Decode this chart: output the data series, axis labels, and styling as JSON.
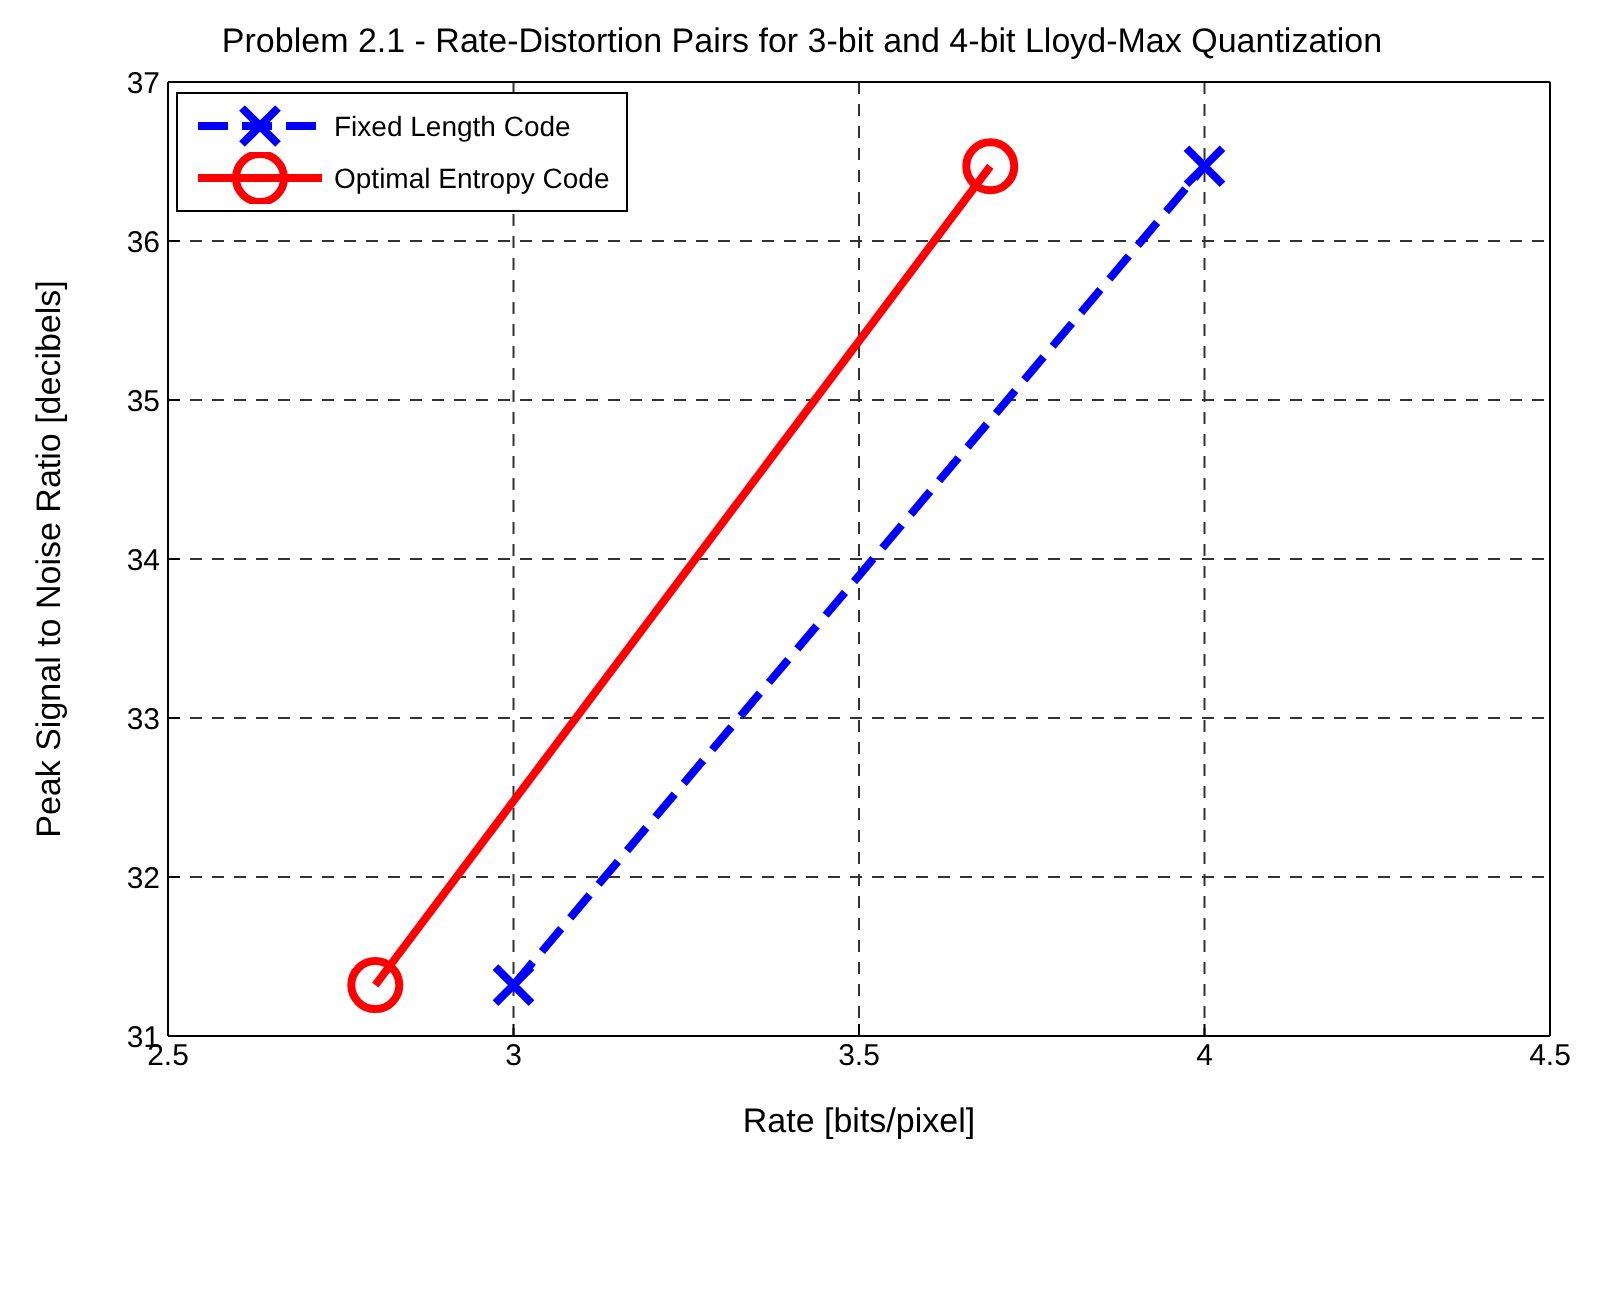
{
  "chart_data": {
    "type": "line",
    "title": "Problem 2.1 - Rate-Distortion Pairs for 3-bit and 4-bit Lloyd-Max Quantization",
    "xlabel": "Rate [bits/pixel]",
    "ylabel": "Peak Signal to Noise Ratio [decibels]",
    "series": [
      {
        "name": "Fixed Length Code",
        "color": "#0000ff",
        "x": [
          3,
          4
        ],
        "values": [
          31.32,
          36.47
        ],
        "marker": "cross",
        "line_style": "dashed"
      },
      {
        "name": "Optimal Entropy Code",
        "color": "#ff0000",
        "x": [
          2.8,
          3.69
        ],
        "values": [
          31.32,
          36.47
        ],
        "marker": "circle",
        "line_style": "solid"
      }
    ],
    "xlim": [
      2.5,
      4.5
    ],
    "xticks": [
      2.5,
      3,
      3.5,
      4,
      4.5
    ],
    "ylim": [
      31,
      37
    ],
    "yticks": [
      31,
      32,
      33,
      34,
      35,
      36,
      37
    ],
    "grid": true,
    "legend": "top left"
  }
}
